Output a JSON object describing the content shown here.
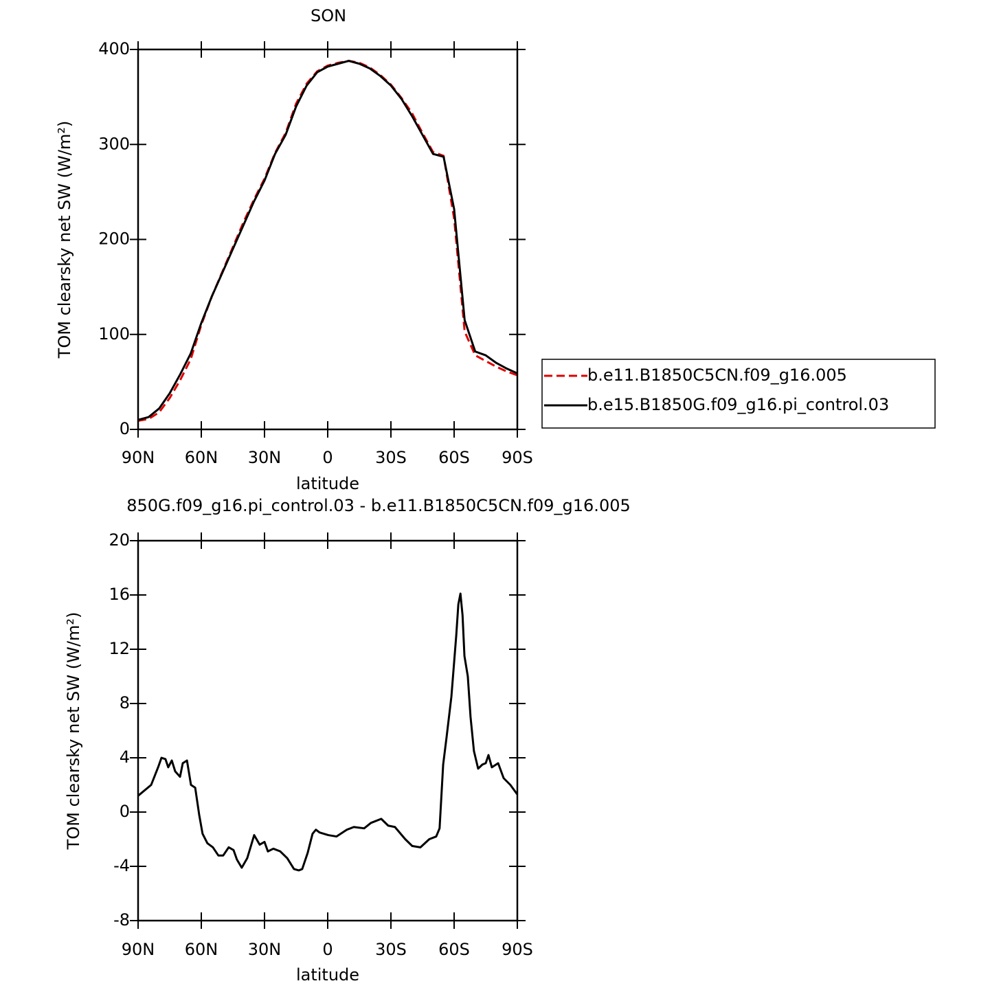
{
  "chart_data": [
    {
      "type": "line",
      "title": "SON",
      "xlabel": "latitude",
      "ylabel": "TOM clearsky net SW (W/m²)",
      "x": [
        90,
        85,
        80,
        75,
        70,
        65,
        60,
        55,
        50,
        45,
        40,
        35,
        30,
        25,
        20,
        15,
        10,
        5,
        0,
        -5,
        -10,
        -15,
        -20,
        -25,
        -30,
        -35,
        -40,
        -45,
        -50,
        -55,
        -60,
        -65,
        -70,
        -75,
        -80,
        -85,
        -90
      ],
      "xlim": [
        90,
        -90
      ],
      "xticks": [
        {
          "value": 90,
          "label": "90N"
        },
        {
          "value": 60,
          "label": "60N"
        },
        {
          "value": 30,
          "label": "30N"
        },
        0,
        {
          "value": -30,
          "label": "30S"
        },
        {
          "value": -60,
          "label": "60S"
        },
        {
          "value": -90,
          "label": "90S"
        }
      ],
      "ylim": [
        0,
        400
      ],
      "yticks": [
        0,
        100,
        200,
        300,
        400
      ],
      "legend": "outside-right",
      "series": [
        {
          "name": "b.e11.B1850C5CN.f09_g16.005",
          "color": "#e00000",
          "linestyle": "dashed",
          "values": [
            9,
            11,
            18,
            33,
            52,
            74,
            110,
            140,
            166,
            192,
            218,
            242,
            264,
            291,
            312,
            343,
            364,
            377,
            383,
            386,
            388,
            386,
            381,
            373,
            363,
            349,
            333,
            312,
            292,
            288,
            222,
            103,
            78,
            72,
            66,
            61,
            57
          ]
        },
        {
          "name": "b.e15.B1850G.f09_g16.pi_control.03",
          "color": "#000000",
          "linestyle": "solid",
          "values": [
            10,
            13,
            22,
            38,
            58,
            80,
            112,
            140,
            165,
            190,
            215,
            240,
            262,
            290,
            310,
            340,
            362,
            376,
            382,
            385,
            388,
            385,
            380,
            372,
            362,
            348,
            330,
            310,
            290,
            287,
            232,
            115,
            82,
            78,
            70,
            64,
            59
          ]
        }
      ]
    },
    {
      "type": "line",
      "title": "850G.f09_g16.pi_control.03 - b.e11.B1850C5CN.f09_g16.005",
      "xlabel": "latitude",
      "ylabel": "TOM clearsky net SW (W/m²)",
      "x": [
        90,
        83.8,
        80.5,
        78.9,
        77,
        75.7,
        74,
        72.4,
        70.1,
        68.8,
        66.8,
        64.9,
        62.9,
        61,
        59.4,
        57.1,
        54.5,
        51.9,
        49.6,
        47,
        44.7,
        43.1,
        40.8,
        38.2,
        34.9,
        32.3,
        30,
        28.4,
        25.8,
        22.5,
        19.2,
        16,
        13.7,
        12.1,
        9.5,
        7.2,
        5.6,
        3.9,
        -0.3,
        -4.2,
        -9.1,
        -12.4,
        -17.3,
        -20.5,
        -25.4,
        -28.7,
        -31.9,
        -36.8,
        -40.1,
        -44,
        -48.2,
        -51.5,
        -53.1,
        -54.8,
        -56.4,
        -58.7,
        -61,
        -62,
        -63,
        -64,
        -64.9,
        -66.5,
        -67.8,
        -69.4,
        -71.4,
        -73.4,
        -75,
        -76.3,
        -77.9,
        -80.9,
        -83.5,
        -86.7,
        -90
      ],
      "xlim": [
        90,
        -90
      ],
      "xticks": [
        {
          "value": 90,
          "label": "90N"
        },
        {
          "value": 60,
          "label": "60N"
        },
        {
          "value": 30,
          "label": "30N"
        },
        0,
        {
          "value": -30,
          "label": "30S"
        },
        {
          "value": -60,
          "label": "60S"
        },
        {
          "value": -90,
          "label": "90S"
        }
      ],
      "ylim": [
        -8,
        20
      ],
      "yticks": [
        -8,
        -4,
        0,
        4,
        8,
        12,
        16,
        20
      ],
      "series": [
        {
          "color": "#000000",
          "linestyle": "solid",
          "values": [
            1.2,
            2.0,
            3.3,
            4.0,
            3.9,
            3.3,
            3.8,
            3.0,
            2.6,
            3.6,
            3.8,
            2.0,
            1.8,
            -0.2,
            -1.6,
            -2.3,
            -2.6,
            -3.2,
            -3.2,
            -2.6,
            -2.8,
            -3.5,
            -4.1,
            -3.4,
            -1.7,
            -2.4,
            -2.2,
            -2.9,
            -2.7,
            -2.9,
            -3.4,
            -4.2,
            -4.3,
            -4.2,
            -3.0,
            -1.6,
            -1.3,
            -1.5,
            -1.7,
            -1.8,
            -1.3,
            -1.1,
            -1.2,
            -0.8,
            -0.5,
            -1.0,
            -1.1,
            -2.0,
            -2.5,
            -2.6,
            -2.0,
            -1.8,
            -1.2,
            3.5,
            5.5,
            8.5,
            13,
            15.3,
            16.1,
            14.5,
            11.5,
            10,
            7.0,
            4.5,
            3.2,
            3.5,
            3.6,
            4.2,
            3.3,
            3.6,
            2.5,
            2.0,
            1.3
          ]
        }
      ]
    }
  ]
}
